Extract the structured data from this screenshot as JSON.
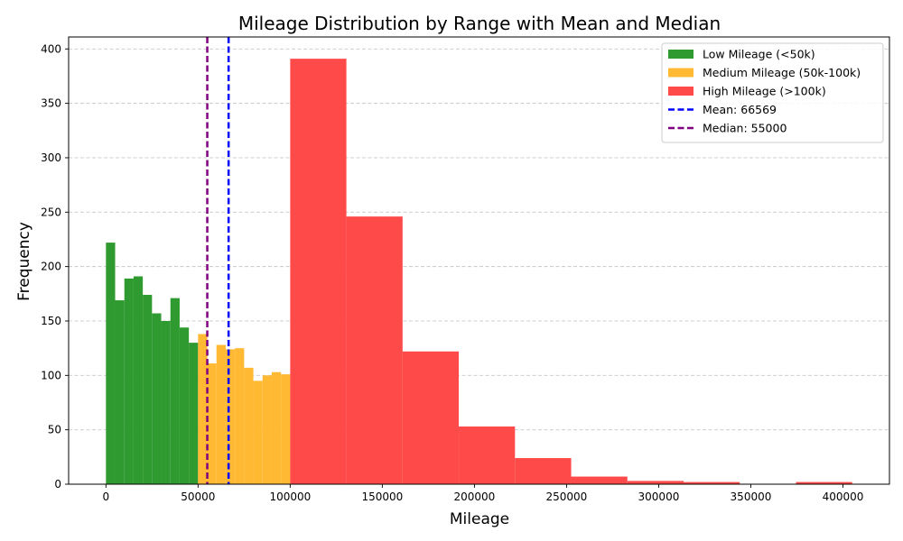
{
  "chart_data": {
    "type": "bar",
    "title": "Mileage Distribution by Range with Mean and Median",
    "xlabel": "Mileage",
    "ylabel": "Frequency",
    "xlim": [
      -20250,
      425250
    ],
    "ylim": [
      0,
      411
    ],
    "x_ticks": [
      0,
      50000,
      100000,
      150000,
      200000,
      250000,
      300000,
      350000,
      400000
    ],
    "x_tick_labels": [
      "0",
      "50000",
      "100000",
      "150000",
      "200000",
      "250000",
      "300000",
      "350000",
      "400000"
    ],
    "y_ticks": [
      0,
      50,
      100,
      150,
      200,
      250,
      300,
      350,
      400
    ],
    "y_tick_labels": [
      "0",
      "50",
      "100",
      "150",
      "200",
      "250",
      "300",
      "350",
      "400"
    ],
    "grid": "y-dashed",
    "legend_position": "top-right",
    "series": [
      {
        "name": "Low Mileage (<50k)",
        "color": "#2f9a2f",
        "bins": [
          {
            "x0": 0,
            "x1": 5000,
            "value": 222
          },
          {
            "x0": 5000,
            "x1": 10000,
            "value": 169
          },
          {
            "x0": 10000,
            "x1": 15000,
            "value": 189
          },
          {
            "x0": 15000,
            "x1": 20000,
            "value": 191
          },
          {
            "x0": 20000,
            "x1": 25000,
            "value": 174
          },
          {
            "x0": 25000,
            "x1": 30000,
            "value": 157
          },
          {
            "x0": 30000,
            "x1": 35000,
            "value": 150
          },
          {
            "x0": 35000,
            "x1": 40000,
            "value": 171
          },
          {
            "x0": 40000,
            "x1": 45000,
            "value": 144
          },
          {
            "x0": 45000,
            "x1": 50000,
            "value": 130
          }
        ]
      },
      {
        "name": "Medium Mileage (50k-100k)",
        "color": "#ffb933",
        "bins": [
          {
            "x0": 50000,
            "x1": 55000,
            "value": 138
          },
          {
            "x0": 55000,
            "x1": 60000,
            "value": 111
          },
          {
            "x0": 60000,
            "x1": 65000,
            "value": 128
          },
          {
            "x0": 65000,
            "x1": 70000,
            "value": 124
          },
          {
            "x0": 70000,
            "x1": 75000,
            "value": 125
          },
          {
            "x0": 75000,
            "x1": 80000,
            "value": 107
          },
          {
            "x0": 80000,
            "x1": 85000,
            "value": 95
          },
          {
            "x0": 85000,
            "x1": 90000,
            "value": 100
          },
          {
            "x0": 90000,
            "x1": 95000,
            "value": 103
          },
          {
            "x0": 95000,
            "x1": 100000,
            "value": 101
          }
        ]
      },
      {
        "name": "High Mileage (>100k)",
        "color": "#ff4a4a",
        "bins": [
          {
            "x0": 100000,
            "x1": 130500,
            "value": 391
          },
          {
            "x0": 130500,
            "x1": 161000,
            "value": 246
          },
          {
            "x0": 161000,
            "x1": 191500,
            "value": 122
          },
          {
            "x0": 191500,
            "x1": 222000,
            "value": 53
          },
          {
            "x0": 222000,
            "x1": 252500,
            "value": 24
          },
          {
            "x0": 252500,
            "x1": 283000,
            "value": 7
          },
          {
            "x0": 283000,
            "x1": 313500,
            "value": 3
          },
          {
            "x0": 313500,
            "x1": 344000,
            "value": 2
          },
          {
            "x0": 344000,
            "x1": 374500,
            "value": 0
          },
          {
            "x0": 374500,
            "x1": 405000,
            "value": 2
          }
        ]
      }
    ],
    "reference_lines": [
      {
        "name": "Mean: 66569",
        "value": 66569,
        "color": "#0000ff",
        "style": "dashed"
      },
      {
        "name": "Median: 55000",
        "value": 55000,
        "color": "#800080",
        "style": "dashed"
      }
    ]
  }
}
